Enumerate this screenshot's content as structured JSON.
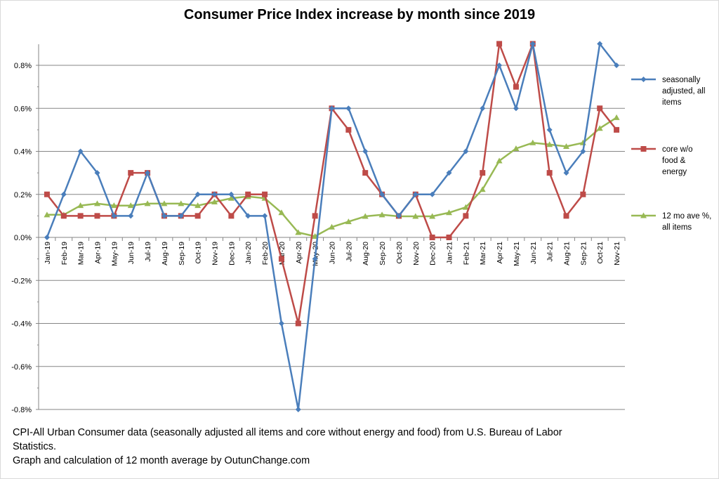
{
  "chart_data": {
    "type": "line",
    "title": "Consumer Price Index increase by month since 2019",
    "xlabel": "",
    "ylabel": "",
    "ylim": [
      -0.8,
      0.9
    ],
    "y_ticks": [
      "0.8%",
      "0.6%",
      "0.4%",
      "0.2%",
      "0.0%",
      "-0.2%",
      "-0.4%",
      "-0.6%",
      "-0.8%"
    ],
    "y_tick_values": [
      0.8,
      0.6,
      0.4,
      0.2,
      0.0,
      -0.2,
      -0.4,
      -0.6,
      -0.8
    ],
    "grid": true,
    "legend_position": "right",
    "categories": [
      "Jan-19",
      "Feb-19",
      "Mar-19",
      "Apr-19",
      "May-19",
      "Jun-19",
      "Jul-19",
      "Aug-19",
      "Sep-19",
      "Oct-19",
      "Nov-19",
      "Dec-19",
      "Jan-20",
      "Feb-20",
      "Mar-20",
      "Apr-20",
      "May-20",
      "Jun-20",
      "Jul-20",
      "Aug-20",
      "Sep-20",
      "Oct-20",
      "Nov-20",
      "Dec-20",
      "Jan-21",
      "Feb-21",
      "Mar-21",
      "Apr-21",
      "May-21",
      "Jun-21",
      "Jul-21",
      "Aug-21",
      "Sep-21",
      "Oct-21",
      "Nov-21"
    ],
    "series": [
      {
        "name": "seasonally adjusted, all items",
        "legend_lines": [
          "seasonally",
          "adjusted, all",
          "items"
        ],
        "color": "#4a7ebb",
        "marker": "diamond",
        "values": [
          0.0,
          0.2,
          0.4,
          0.3,
          0.1,
          0.1,
          0.3,
          0.1,
          0.1,
          0.2,
          0.2,
          0.2,
          0.1,
          0.1,
          -0.4,
          -0.8,
          -0.1,
          0.6,
          0.6,
          0.4,
          0.2,
          0.1,
          0.2,
          0.2,
          0.3,
          0.4,
          0.6,
          0.8,
          0.6,
          0.9,
          0.5,
          0.3,
          0.4,
          0.9,
          0.8
        ]
      },
      {
        "name": "core w/o food & energy",
        "legend_lines": [
          "core w/o",
          "food &",
          "energy"
        ],
        "color": "#be4b48",
        "marker": "square",
        "values": [
          0.2,
          0.1,
          0.1,
          0.1,
          0.1,
          0.3,
          0.3,
          0.1,
          0.1,
          0.1,
          0.2,
          0.1,
          0.2,
          0.2,
          -0.1,
          -0.4,
          0.1,
          0.6,
          0.5,
          0.3,
          0.2,
          0.1,
          0.2,
          0.0,
          0.0,
          0.1,
          0.3,
          0.9,
          0.7,
          0.9,
          0.3,
          0.1,
          0.2,
          0.6,
          0.5
        ]
      },
      {
        "name": "12 mo ave %, all items",
        "legend_lines": [
          "12 mo ave %,",
          "all items"
        ],
        "color": "#98b954",
        "marker": "triangle",
        "values": [
          0.105,
          0.105,
          0.148,
          0.157,
          0.148,
          0.148,
          0.157,
          0.157,
          0.157,
          0.148,
          0.165,
          0.182,
          0.19,
          0.182,
          0.115,
          0.023,
          0.005,
          0.048,
          0.073,
          0.098,
          0.105,
          0.098,
          0.098,
          0.098,
          0.115,
          0.14,
          0.223,
          0.356,
          0.413,
          0.44,
          0.432,
          0.423,
          0.44,
          0.507,
          0.557
        ]
      }
    ]
  },
  "footnote": {
    "line1": "CPI-All Urban Consumer data (seasonally adjusted all items and core without energy and food) from U.S. Bureau of Labor",
    "line2": "Statistics.",
    "line3": "Graph and calculation of 12 month average  by OutunChange.com"
  }
}
